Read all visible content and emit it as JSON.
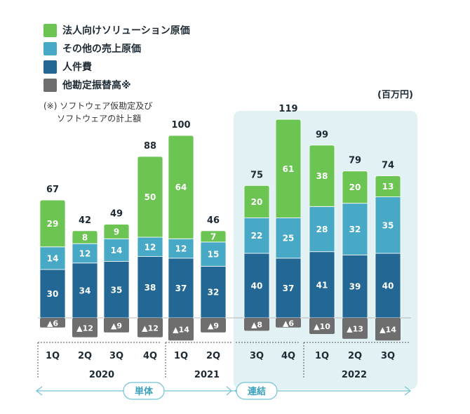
{
  "legend": [
    {
      "label": "法人向けソリューション原価",
      "color": "#6cc552",
      "icon": "green-square-icon"
    },
    {
      "label": "その他の売上原価",
      "color": "#47a9c5",
      "icon": "teal-square-icon"
    },
    {
      "label": "人件費",
      "color": "#236894",
      "icon": "navy-square-icon"
    },
    {
      "label": "他勘定振替高※",
      "color": "#6e6e6e",
      "icon": "gray-square-icon"
    }
  ],
  "note": {
    "line1": "(※) ソフトウェア仮勘定及び",
    "line2": "     ソフトウェアの計上額"
  },
  "unit_label": "(百万円)",
  "segments": {
    "standalone": "単体",
    "consolidated": "連結"
  },
  "chart_data": {
    "type": "bar",
    "stacked": true,
    "categories": [
      "1Q",
      "2Q",
      "3Q",
      "4Q",
      "1Q",
      "2Q",
      "3Q",
      "4Q",
      "1Q",
      "2Q",
      "3Q"
    ],
    "years": [
      {
        "label": "2020",
        "span": [
          0,
          3
        ]
      },
      {
        "label": "2021",
        "span": [
          4,
          7
        ]
      },
      {
        "label": "2022",
        "span": [
          8,
          10
        ]
      }
    ],
    "series": [
      {
        "name": "人件費",
        "values": [
          30,
          34,
          35,
          38,
          37,
          32,
          40,
          37,
          41,
          39,
          40
        ],
        "color": "#236894"
      },
      {
        "name": "その他の売上原価",
        "values": [
          14,
          12,
          14,
          12,
          12,
          15,
          22,
          25,
          28,
          32,
          35
        ],
        "color": "#47a9c5"
      },
      {
        "name": "法人向けソリューション原価",
        "values": [
          29,
          8,
          9,
          50,
          64,
          7,
          20,
          61,
          38,
          20,
          13
        ],
        "color": "#6cc552"
      },
      {
        "name": "他勘定振替高※",
        "values": [
          -6,
          -12,
          -9,
          -12,
          -14,
          -9,
          -8,
          -6,
          -10,
          -13,
          -14
        ],
        "color": "#6e6e6e",
        "labels": [
          "▲6",
          "▲12",
          "▲9",
          "▲12",
          "▲14",
          "▲9",
          "▲8",
          "▲6",
          "▲10",
          "▲13",
          "▲14"
        ]
      }
    ],
    "totals": [
      67,
      42,
      49,
      88,
      100,
      46,
      75,
      119,
      99,
      79,
      74
    ],
    "ylim": [
      -14,
      119
    ],
    "xlabel": "",
    "ylabel": ""
  },
  "colors": {
    "highlight_bg": "#e2f2f4",
    "arrow": "#72c4d3",
    "pill_text": "#3aa0bb"
  }
}
